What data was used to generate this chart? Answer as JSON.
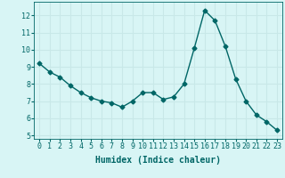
{
  "x": [
    0,
    1,
    2,
    3,
    4,
    5,
    6,
    7,
    8,
    9,
    10,
    11,
    12,
    13,
    14,
    15,
    16,
    17,
    18,
    19,
    20,
    21,
    22,
    23
  ],
  "y": [
    9.2,
    8.7,
    8.4,
    7.9,
    7.5,
    7.2,
    7.0,
    6.9,
    6.65,
    7.0,
    7.5,
    7.5,
    7.1,
    7.25,
    8.0,
    10.1,
    12.3,
    11.7,
    10.2,
    8.3,
    7.0,
    6.2,
    5.8,
    5.3
  ],
  "line_color": "#006666",
  "marker": "D",
  "marker_size": 2.5,
  "linewidth": 1.0,
  "xlabel": "Humidex (Indice chaleur)",
  "xlim": [
    -0.5,
    23.5
  ],
  "ylim": [
    4.8,
    12.8
  ],
  "yticks": [
    5,
    6,
    7,
    8,
    9,
    10,
    11,
    12
  ],
  "xtick_labels": [
    "0",
    "1",
    "2",
    "3",
    "4",
    "5",
    "6",
    "7",
    "8",
    "9",
    "10",
    "11",
    "12",
    "13",
    "14",
    "15",
    "16",
    "17",
    "18",
    "19",
    "20",
    "21",
    "22",
    "23"
  ],
  "bg_color": "#d8f5f5",
  "grid_color": "#c8e8e8",
  "tick_color": "#006666",
  "label_color": "#006666",
  "xlabel_fontsize": 7,
  "tick_fontsize": 6
}
